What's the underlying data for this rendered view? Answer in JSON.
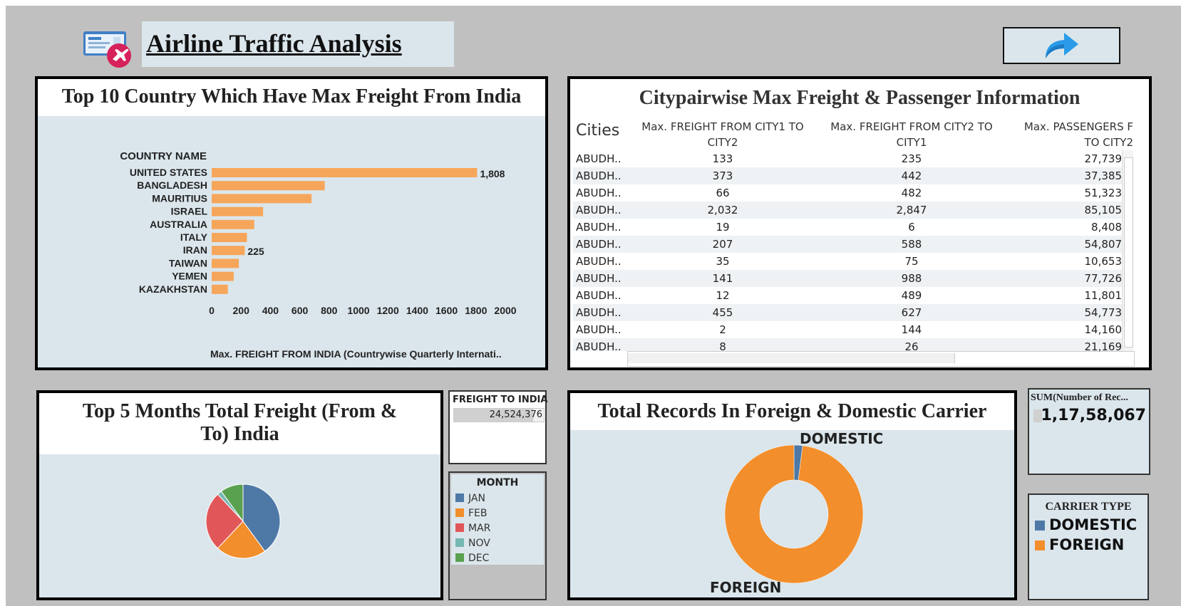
{
  "header": {
    "title": "Airline Traffic Analysis",
    "logo_icon": "airline-ticket-plane-icon",
    "nav_icon": "share-arrow-icon"
  },
  "freight_country": {
    "title": "Top 10 Country Which Have Max Freight From India",
    "row_header": "COUNTRY NAME",
    "xlabel": "Max. FREIGHT FROM INDIA (Countrywise Quarterly Internati..",
    "chart_data": {
      "type": "bar",
      "orientation": "horizontal",
      "categories": [
        "UNITED STATES",
        "BANGLADESH",
        "MAURITIUS",
        "ISRAEL",
        "AUSTRALIA",
        "ITALY",
        "IRAN",
        "TAIWAN",
        "YEMEN",
        "KAZAKHSTAN"
      ],
      "values": [
        1808,
        770,
        680,
        350,
        290,
        240,
        225,
        185,
        150,
        110
      ],
      "data_labels": {
        "UNITED STATES": "1,808",
        "IRAN": "225"
      },
      "xlim": [
        0,
        2000
      ],
      "xticks": [
        "0",
        "200",
        "400",
        "600",
        "800",
        "1000",
        "1200",
        "1400",
        "1600",
        "1800",
        "2000"
      ],
      "xlabel": "Max. FREIGHT FROM INDIA (Countrywise Quarterly Internati..",
      "ylabel": "COUNTRY NAME",
      "color": "#f6a65b",
      "grid": false
    }
  },
  "citypair": {
    "title": "Citypairwise Max Freight & Passenger Information",
    "columns": [
      "Cities",
      "Max. FREIGHT FROM CITY1 TO",
      "CITY2",
      "Max. FREIGHT FROM CITY2 TO",
      "CITY1",
      "Max. PASSENGERS F",
      "TO CITY2"
    ],
    "rows": [
      [
        "ABUDH..",
        "133",
        "235",
        "27,739"
      ],
      [
        "ABUDH..",
        "373",
        "442",
        "37,385"
      ],
      [
        "ABUDH..",
        "66",
        "482",
        "51,323"
      ],
      [
        "ABUDH..",
        "2,032",
        "2,847",
        "85,105"
      ],
      [
        "ABUDH..",
        "19",
        "6",
        "8,408"
      ],
      [
        "ABUDH..",
        "207",
        "588",
        "54,807"
      ],
      [
        "ABUDH..",
        "35",
        "75",
        "10,653"
      ],
      [
        "ABUDH..",
        "141",
        "988",
        "77,726"
      ],
      [
        "ABUDH..",
        "12",
        "489",
        "11,801"
      ],
      [
        "ABUDH..",
        "455",
        "627",
        "54,773"
      ],
      [
        "ABUDH..",
        "2",
        "144",
        "14,160"
      ],
      [
        "ABUDH..",
        "8",
        "26",
        "21,169"
      ]
    ]
  },
  "months": {
    "title": "Top 5 Months Total Freight (From & To) India",
    "chart_data": {
      "type": "pie",
      "categories": [
        "JAN",
        "FEB",
        "MAR",
        "NOV",
        "DEC"
      ],
      "values": [
        40,
        22,
        26,
        2,
        10
      ],
      "colors": [
        "#4e79a7",
        "#f28e2b",
        "#e15759",
        "#76b7b2",
        "#59a14f"
      ]
    }
  },
  "freight_to_india": {
    "label": "FREIGHT TO INDIA",
    "value": "24,524,376",
    "fill_fraction": 0.88
  },
  "month_legend": {
    "title": "MONTH",
    "items": [
      {
        "label": "JAN",
        "color": "#4e79a7"
      },
      {
        "label": "FEB",
        "color": "#f28e2b"
      },
      {
        "label": "MAR",
        "color": "#e15759"
      },
      {
        "label": "NOV",
        "color": "#76b7b2"
      },
      {
        "label": "DEC",
        "color": "#59a14f"
      }
    ]
  },
  "carrier": {
    "title": "Total Records In Foreign & Domestic Carrier",
    "label_domestic": "DOMESTIC",
    "label_foreign": "FOREIGN",
    "chart_data": {
      "type": "pie",
      "donut": true,
      "categories": [
        "DOMESTIC",
        "FOREIGN"
      ],
      "values": [
        2,
        98
      ],
      "colors": [
        "#4e79a7",
        "#f28e2b"
      ]
    }
  },
  "sum_records": {
    "label": "SUM(Number of Rec...",
    "value": "1,17,58,067"
  },
  "carrier_legend": {
    "title": "CARRIER TYPE",
    "items": [
      {
        "label": "DOMESTIC",
        "color": "#4e79a7"
      },
      {
        "label": "FOREIGN",
        "color": "#f28e2b"
      }
    ]
  }
}
